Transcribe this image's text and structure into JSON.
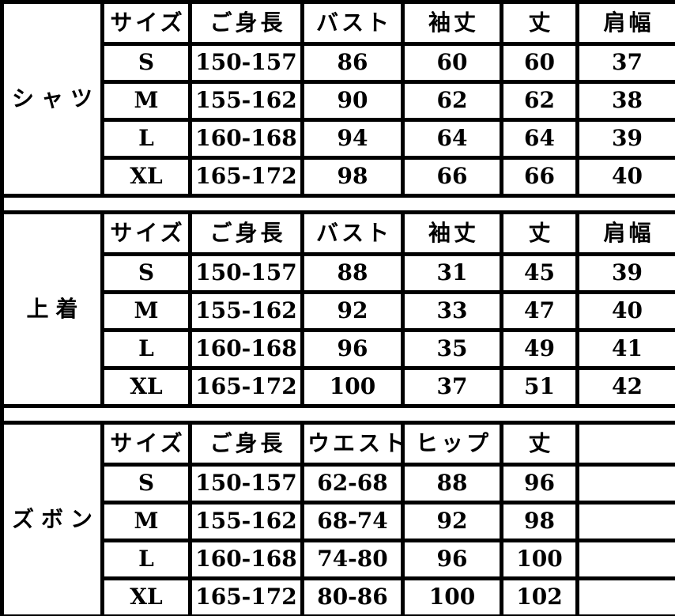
{
  "style": {
    "background": "#ffffff",
    "line_color": "#000000",
    "text_color": "#000000"
  },
  "chart_data": [
    {
      "type": "table",
      "title": "シャツ",
      "columns": [
        "サイズ",
        "ご身長",
        "バスト",
        "袖丈",
        "丈",
        "肩幅"
      ],
      "rows": [
        [
          "S",
          "150-157",
          "86",
          "60",
          "60",
          "37"
        ],
        [
          "M",
          "155-162",
          "90",
          "62",
          "62",
          "38"
        ],
        [
          "L",
          "160-168",
          "94",
          "64",
          "64",
          "39"
        ],
        [
          "XL",
          "165-172",
          "98",
          "66",
          "66",
          "40"
        ]
      ]
    },
    {
      "type": "table",
      "title": "上着",
      "columns": [
        "サイズ",
        "ご身長",
        "バスト",
        "袖丈",
        "丈",
        "肩幅"
      ],
      "rows": [
        [
          "S",
          "150-157",
          "88",
          "31",
          "45",
          "39"
        ],
        [
          "M",
          "155-162",
          "92",
          "33",
          "47",
          "40"
        ],
        [
          "L",
          "160-168",
          "96",
          "35",
          "49",
          "41"
        ],
        [
          "XL",
          "165-172",
          "100",
          "37",
          "51",
          "42"
        ]
      ]
    },
    {
      "type": "table",
      "title": "ズボン",
      "columns": [
        "サイズ",
        "ご身長",
        "ウエスト",
        "ヒップ",
        "丈",
        ""
      ],
      "rows": [
        [
          "S",
          "150-157",
          "62-68",
          "88",
          "96",
          ""
        ],
        [
          "M",
          "155-162",
          "68-74",
          "92",
          "98",
          ""
        ],
        [
          "L",
          "160-168",
          "74-80",
          "96",
          "100",
          ""
        ],
        [
          "XL",
          "165-172",
          "80-86",
          "100",
          "102",
          ""
        ]
      ]
    }
  ]
}
